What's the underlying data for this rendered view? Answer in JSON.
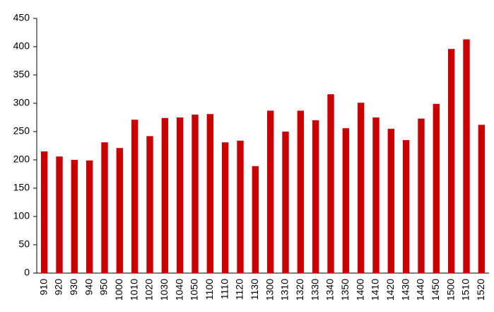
{
  "chart_data": {
    "type": "bar",
    "categories": [
      "910",
      "920",
      "930",
      "940",
      "950",
      "1000",
      "1010",
      "1020",
      "1030",
      "1040",
      "1050",
      "1100",
      "1110",
      "1120",
      "1130",
      "1300",
      "1310",
      "1320",
      "1330",
      "1340",
      "1350",
      "1400",
      "1410",
      "1420",
      "1430",
      "1440",
      "1450",
      "1500",
      "1510",
      "1520"
    ],
    "values": [
      215,
      206,
      200,
      199,
      231,
      221,
      271,
      242,
      274,
      275,
      280,
      281,
      231,
      234,
      189,
      287,
      250,
      287,
      270,
      316,
      256,
      301,
      275,
      255,
      235,
      273,
      299,
      396,
      413,
      262
    ],
    "color": "#cc0000",
    "ylim": [
      0,
      450
    ],
    "yticks": [
      0,
      50,
      100,
      150,
      200,
      250,
      300,
      350,
      400,
      450
    ],
    "grid": false
  }
}
